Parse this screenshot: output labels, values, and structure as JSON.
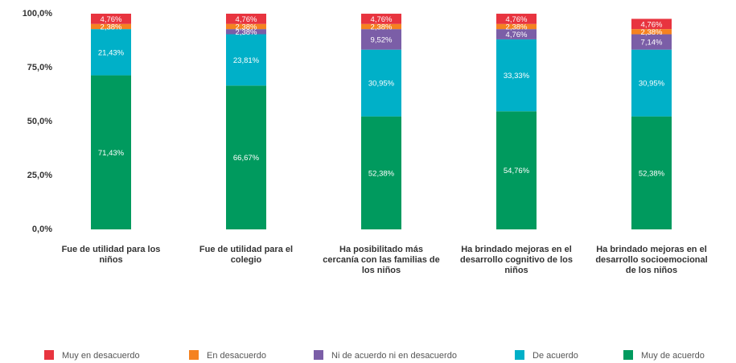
{
  "chart_data": {
    "type": "stacked_bar",
    "categories": [
      "Fue de utilidad para los niños",
      "Fue de utilidad para el colegio",
      "Ha posibilitado más cercanía con las familias de los niños",
      "Ha brindado mejoras en el desarrollo cognitivo de los niños",
      "Ha brindado mejoras en el desarrollo socioemocional de los niños"
    ],
    "series": [
      {
        "name": "Muy en desacuerdo",
        "color": "#e8343f",
        "values": [
          4.76,
          4.76,
          4.76,
          4.76,
          4.76
        ],
        "value_labels": [
          "4,76%",
          "4,76%",
          "4,76%",
          "4,76%",
          "4,76%"
        ]
      },
      {
        "name": "En desacuerdo",
        "color": "#f58220",
        "values": [
          2.38,
          2.38,
          2.38,
          2.38,
          2.38
        ],
        "value_labels": [
          "2,38%",
          "2,38%",
          "2,38%",
          "2,38%",
          "2,38%"
        ]
      },
      {
        "name": "Ni de acuerdo ni en desacuerdo",
        "color": "#7b5ea7",
        "values": [
          null,
          2.38,
          9.52,
          4.76,
          7.14
        ],
        "value_labels": [
          null,
          "2,38%",
          "9,52%",
          "4,76%",
          "7,14%"
        ]
      },
      {
        "name": "De acuerdo",
        "color": "#00b0c8",
        "values": [
          21.43,
          23.81,
          30.95,
          33.33,
          30.95
        ],
        "value_labels": [
          "21,43%",
          "23,81%",
          "30,95%",
          "33,33%",
          "30,95%"
        ]
      },
      {
        "name": "Muy de acuerdo",
        "color": "#009a5e",
        "values": [
          71.43,
          66.67,
          52.38,
          54.76,
          52.38
        ],
        "value_labels": [
          "71,43%",
          "66,67%",
          "52,38%",
          "54,76%",
          "52,38%"
        ]
      }
    ],
    "ylim": [
      0,
      100
    ],
    "yticks": [
      {
        "value": 0,
        "label": "0,0%"
      },
      {
        "value": 25,
        "label": "25,0%"
      },
      {
        "value": 50,
        "label": "50,0%"
      },
      {
        "value": 75,
        "label": "75,0%"
      },
      {
        "value": 100,
        "label": "100,0%"
      }
    ],
    "grid": false,
    "legend": "bottom"
  }
}
